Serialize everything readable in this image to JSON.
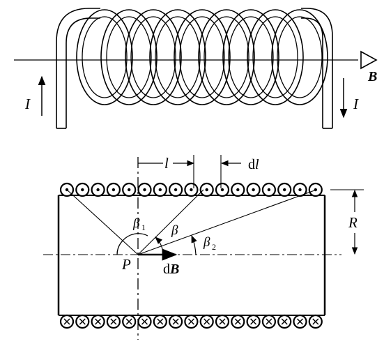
{
  "labels": {
    "field_B": "B",
    "current_left": "I",
    "current_right": "I",
    "length_l": "l",
    "element_dl": "dl",
    "radius_R": "R",
    "angle_beta1": "β",
    "angle_beta1_sub": "1",
    "angle_beta": "β",
    "angle_beta2": "β",
    "angle_beta2_sub": "2",
    "point_P": "P",
    "field_dB_d": "d",
    "field_dB_B": "B"
  },
  "solenoid": {
    "turns": 9
  },
  "cross_section": {
    "top_row_symbol": "dot",
    "bottom_row_symbol": "cross",
    "conductors_per_row": 17
  }
}
